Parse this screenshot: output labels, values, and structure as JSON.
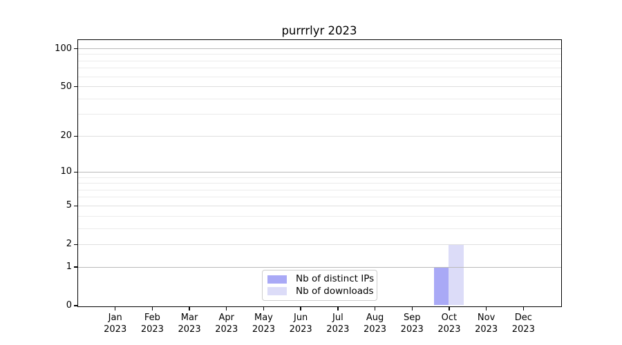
{
  "chart_data": {
    "type": "bar",
    "title": "purrrlyr 2023",
    "categories": [
      "Jan 2023",
      "Feb 2023",
      "Mar 2023",
      "Apr 2023",
      "May 2023",
      "Jun 2023",
      "Jul 2023",
      "Aug 2023",
      "Sep 2023",
      "Oct 2023",
      "Nov 2023",
      "Dec 2023"
    ],
    "series": [
      {
        "name": "Nb of distinct IPs",
        "color": "#a9a9f6",
        "values": [
          0,
          0,
          0,
          0,
          0,
          0,
          0,
          0,
          0,
          1,
          0,
          0
        ]
      },
      {
        "name": "Nb of downloads",
        "color": "#dcdcf8",
        "values": [
          0,
          0,
          0,
          0,
          0,
          0,
          0,
          0,
          0,
          2,
          0,
          0
        ]
      }
    ],
    "xlabel": "",
    "ylabel": "",
    "yscale": "log1p",
    "ylim": [
      0,
      117
    ],
    "yticks": [
      0,
      1,
      2,
      5,
      10,
      20,
      50,
      100
    ],
    "gridlines": {
      "major": [
        1,
        10,
        100
      ],
      "mid": [
        2,
        5,
        20,
        50
      ],
      "minor": [
        3,
        4,
        6,
        7,
        8,
        9,
        30,
        40,
        60,
        70,
        80,
        90
      ]
    },
    "grid": "on",
    "legend": {
      "position": "lower center inside"
    },
    "colors": {
      "major_grid": "#b9b9b9",
      "mid_grid": "#dedede",
      "minor_grid": "#ebebeb",
      "axis": "#000000",
      "background": "#ffffff"
    }
  }
}
